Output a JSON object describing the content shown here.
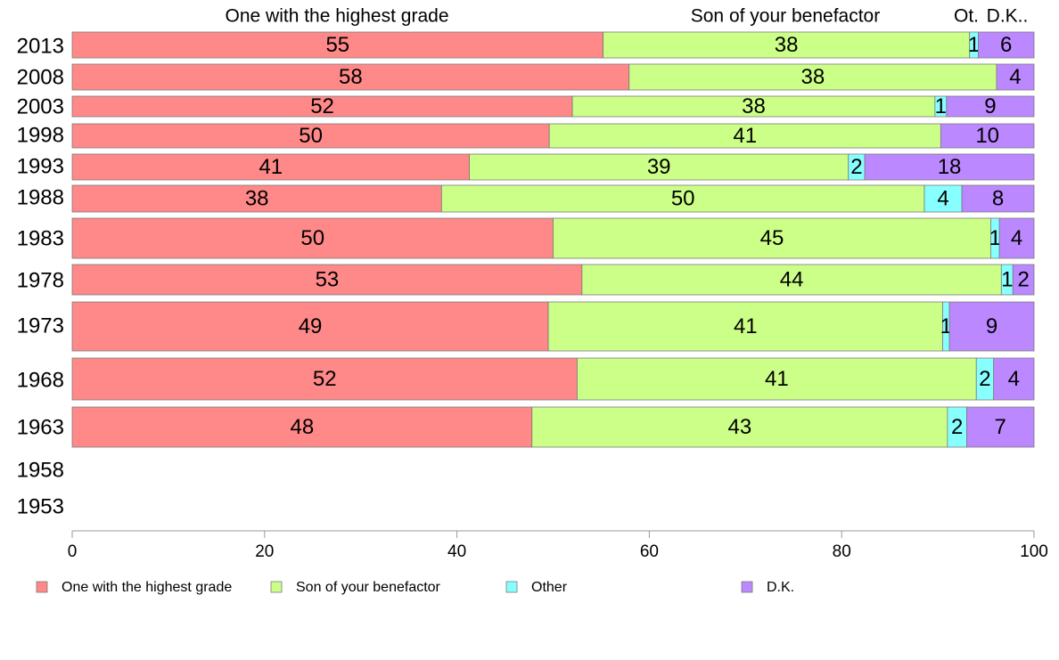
{
  "chart_data": {
    "type": "bar",
    "orientation": "horizontal",
    "stacked": true,
    "categories": [
      "2013",
      "2008",
      "2003",
      "1998",
      "1993",
      "1988",
      "1983",
      "1978",
      "1973",
      "1968",
      "1963",
      "1958",
      "1953"
    ],
    "category_weights": [
      1,
      1,
      0.85,
      1,
      1.1,
      1.1,
      1.65,
      1.3,
      2,
      1.75,
      1.6,
      0,
      0
    ],
    "series": [
      {
        "name": "One with the highest grade",
        "color": "#ff8888",
        "values": [
          55.2,
          57.9,
          52.0,
          49.6,
          41.3,
          38.4,
          50.0,
          53.0,
          49.5,
          52.5,
          47.8,
          null,
          null
        ],
        "labels": [
          "55",
          "58",
          "52",
          "50",
          "41",
          "38",
          "50",
          "53",
          "49",
          "52",
          "48",
          "",
          ""
        ]
      },
      {
        "name": "Son of your benefactor",
        "color": "#ccff88",
        "values": [
          38.1,
          38.2,
          37.7,
          40.7,
          39.4,
          50.2,
          45.5,
          43.6,
          41.0,
          41.5,
          43.2,
          null,
          null
        ],
        "labels": [
          "38",
          "38",
          "38",
          "41",
          "39",
          "50",
          "45",
          "44",
          "41",
          "41",
          "43",
          "",
          ""
        ]
      },
      {
        "name": "Other",
        "color": "#88ffff",
        "values": [
          0.9,
          0,
          1.2,
          0,
          1.7,
          3.9,
          0.9,
          1.2,
          0.7,
          1.8,
          2.0,
          null,
          null
        ],
        "labels": [
          "1",
          "",
          "1",
          "",
          "2",
          "4",
          "1",
          "1",
          "1",
          "2",
          "2",
          "",
          ""
        ]
      },
      {
        "name": "D.K.",
        "color": "#bb88ff",
        "values": [
          5.8,
          3.9,
          9.1,
          9.7,
          17.6,
          7.5,
          3.6,
          2.2,
          8.8,
          4.2,
          7.0,
          null,
          null
        ],
        "labels": [
          "6",
          "4",
          "9",
          "10",
          "18",
          "8",
          "4",
          "2",
          "9",
          "4",
          "7",
          "",
          ""
        ]
      }
    ],
    "top_labels": [
      {
        "text": "One with the highest grade",
        "series": 0
      },
      {
        "text": "Son of your benefactor",
        "series": 1
      },
      {
        "text": "Ot.",
        "series": 2
      },
      {
        "text": "D.K..",
        "series": 3
      }
    ],
    "xlim": [
      0,
      100
    ],
    "xticks": [
      0,
      20,
      40,
      60,
      80,
      100
    ],
    "grid": false,
    "legend_position": "bottom"
  }
}
